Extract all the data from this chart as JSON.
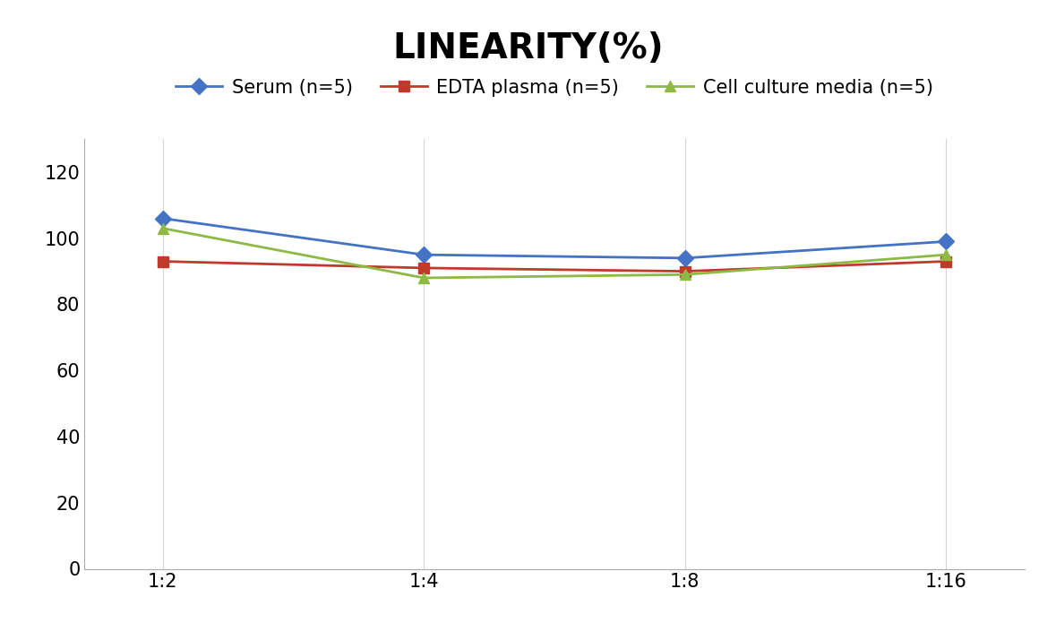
{
  "title": "LINEARITY(%)",
  "x_labels": [
    "1:2",
    "1:4",
    "1:8",
    "1:16"
  ],
  "series": [
    {
      "label": "Serum (n=5)",
      "values": [
        106,
        95,
        94,
        99
      ],
      "color": "#4472C4",
      "marker": "D",
      "marker_color": "#4472C4"
    },
    {
      "label": "EDTA plasma (n=5)",
      "values": [
        93,
        91,
        90,
        93
      ],
      "color": "#C0392B",
      "marker": "s",
      "marker_color": "#C0392B"
    },
    {
      "label": "Cell culture media (n=5)",
      "values": [
        103,
        88,
        89,
        95
      ],
      "color": "#8DB944",
      "marker": "^",
      "marker_color": "#8DB944"
    }
  ],
  "ylim": [
    0,
    130
  ],
  "yticks": [
    0,
    20,
    40,
    60,
    80,
    100,
    120
  ],
  "background_color": "#ffffff",
  "title_fontsize": 28,
  "legend_fontsize": 15,
  "tick_fontsize": 15,
  "grid_color": "#d5d5d5",
  "line_width": 2.0,
  "marker_size": 9
}
